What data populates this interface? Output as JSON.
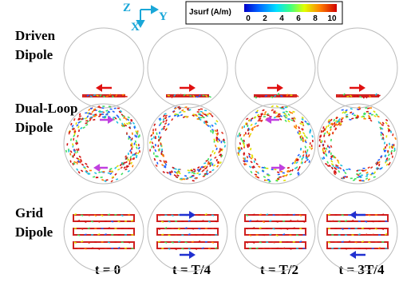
{
  "axes": {
    "z": "Z",
    "x": "X",
    "y": "Y"
  },
  "colorbar": {
    "title": "Jsurf (A/m)",
    "lim": [
      0,
      10
    ],
    "ticks": [
      0,
      2,
      4,
      6,
      8,
      10
    ]
  },
  "rows": [
    {
      "label": [
        "Driven",
        "Dipole"
      ]
    },
    {
      "label": [
        "Dual-Loop",
        "Dipole"
      ]
    },
    {
      "label": [
        "Grid",
        "Dipole"
      ]
    }
  ],
  "columns": [
    "t = 0",
    "t = T/4",
    "t = T/2",
    "t = 3T/4"
  ]
}
